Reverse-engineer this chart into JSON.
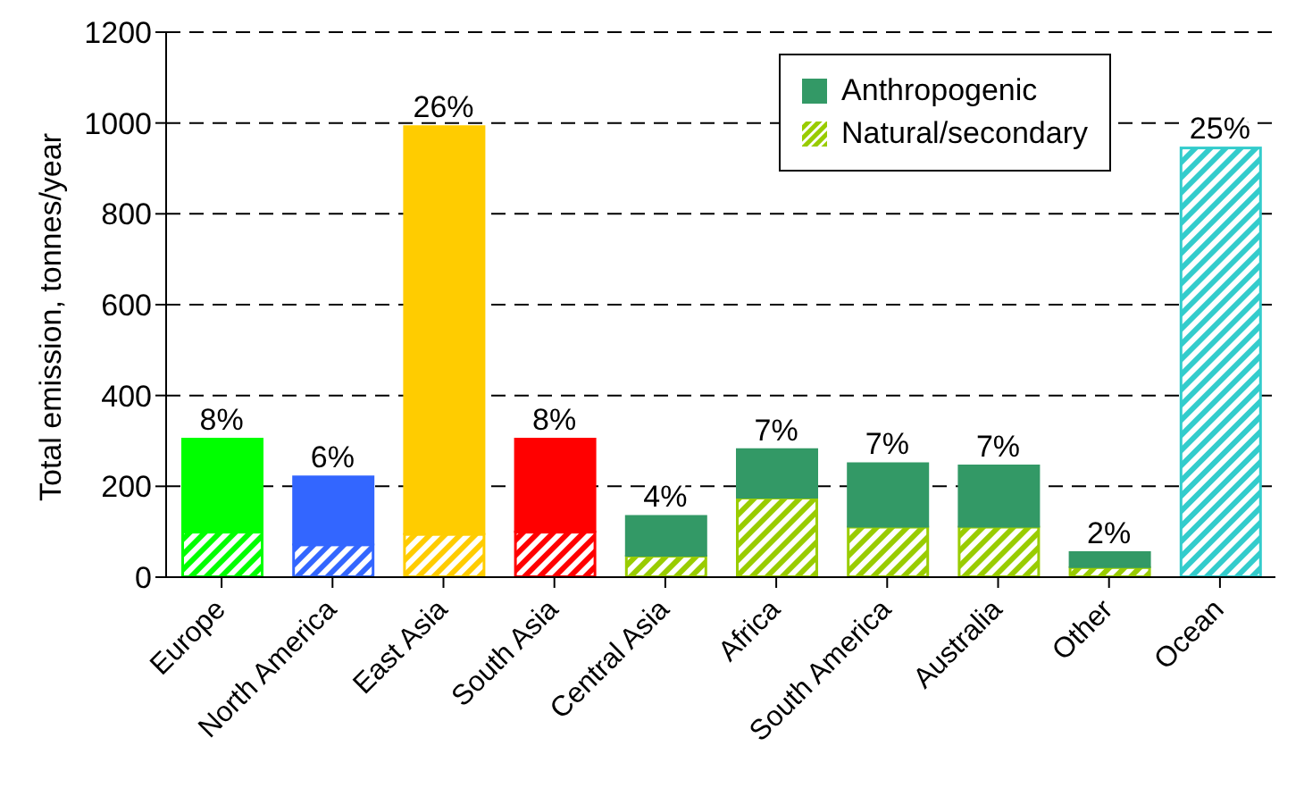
{
  "chart_data": {
    "type": "bar",
    "stacked": true,
    "ylabel": "Total emission, tonnes/year",
    "categories": [
      "Europe",
      "North America",
      "East Asia",
      "South Asia",
      "Central Asia",
      "Africa",
      "South America",
      "Australia",
      "Other",
      "Ocean"
    ],
    "series": [
      {
        "name": "Natural/secondary",
        "color": "#99cc00",
        "colors": [
          "#00ff00",
          "#3366ff",
          "#ffcc00",
          "#ff0000",
          "#99cc00",
          "#99cc00",
          "#99cc00",
          "#99cc00",
          "#99cc00",
          "#33cccc"
        ],
        "values": [
          100,
          72,
          95,
          100,
          47,
          175,
          111,
          111,
          22,
          946
        ]
      },
      {
        "name": "Anthropogenic",
        "color": "#339966",
        "colors": [
          "#00ff00",
          "#3366ff",
          "#ffcc00",
          "#ff0000",
          "#339966",
          "#339966",
          "#339966",
          "#339966",
          "#339966",
          "#33cccc"
        ],
        "values": [
          205,
          150,
          898,
          205,
          88,
          107,
          140,
          135,
          33,
          null
        ]
      }
    ],
    "annotations": [
      {
        "text": "8%",
        "x": "Europe",
        "y": 305
      },
      {
        "text": "6%",
        "x": "North America",
        "y": 222
      },
      {
        "text": "26%",
        "x": "East Asia",
        "y": 993
      },
      {
        "text": "8%",
        "x": "South Asia",
        "y": 305
      },
      {
        "text": "4%",
        "x": "Central Asia",
        "y": 135
      },
      {
        "text": "7%",
        "x": "Africa",
        "y": 282
      },
      {
        "text": "7%",
        "x": "South America",
        "y": 251
      },
      {
        "text": "7%",
        "x": "Australia",
        "y": 246
      },
      {
        "text": "2%",
        "x": "Other",
        "y": 55
      },
      {
        "text": "25%",
        "x": "Ocean",
        "y": 946
      }
    ],
    "ylim": [
      0,
      1200
    ],
    "yticks": [
      0,
      200,
      400,
      600,
      800,
      1000,
      1200
    ],
    "grid": "y",
    "legend": "top right"
  }
}
